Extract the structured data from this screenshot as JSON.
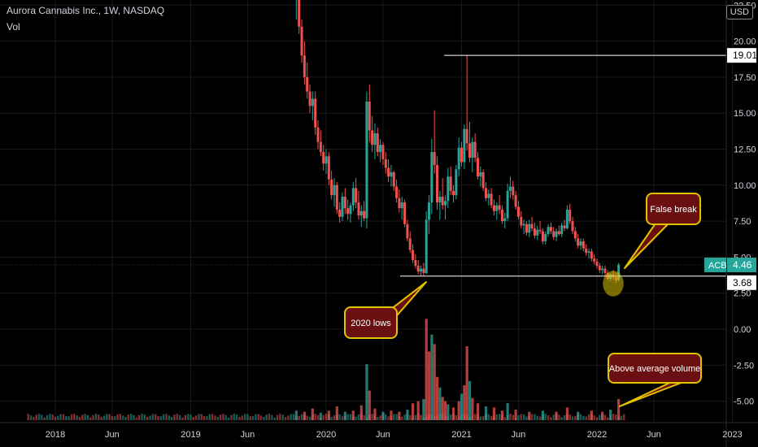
{
  "header": {
    "symbol_title": "Aurora Cannabis Inc., 1W, NASDAQ",
    "volume_label": "Vol",
    "currency": "USD"
  },
  "chart_data": {
    "type": "candlestick",
    "ticker": "ACB",
    "y_ticks": [
      "-5.00",
      "-2.50",
      "0.00",
      "2.50",
      "5.00",
      "7.50",
      "10.00",
      "12.50",
      "15.00",
      "17.50",
      "20.00",
      "22.50"
    ],
    "x_ticks": [
      "2018",
      "Jun",
      "2019",
      "Jun",
      "2020",
      "Jun",
      "2021",
      "Jun",
      "2022",
      "Jun",
      "2023"
    ],
    "price_labels": {
      "last": "4.46",
      "high_line": "19.01",
      "low_line": "3.68"
    },
    "colors": {
      "up": "#26a69a",
      "down": "#ef5350",
      "annotation_fill": "#6b1010",
      "annotation_border": "#e0c200",
      "grid": "#1a1a1a"
    },
    "candles": [
      [
        2019.78,
        23.0,
        25.5,
        21.5,
        24.0
      ],
      [
        2019.8,
        24.0,
        24.5,
        20.5,
        21.0
      ],
      [
        2019.82,
        21.0,
        21.5,
        18.5,
        19.0
      ],
      [
        2019.84,
        19.0,
        20.0,
        17.0,
        17.5
      ],
      [
        2019.86,
        17.5,
        18.5,
        16.0,
        16.5
      ],
      [
        2019.88,
        16.5,
        17.0,
        15.0,
        15.5
      ],
      [
        2019.9,
        15.5,
        16.5,
        14.5,
        16.0
      ],
      [
        2019.92,
        16.0,
        16.5,
        13.5,
        14.0
      ],
      [
        2019.94,
        14.0,
        14.5,
        12.5,
        13.0
      ],
      [
        2019.96,
        13.0,
        13.8,
        12.0,
        12.3
      ],
      [
        2019.98,
        12.3,
        12.8,
        11.0,
        11.5
      ],
      [
        2020.0,
        11.5,
        12.5,
        10.8,
        12.0
      ],
      [
        2020.02,
        12.0,
        12.3,
        10.0,
        10.4
      ],
      [
        2020.04,
        10.4,
        11.0,
        9.0,
        9.3
      ],
      [
        2020.06,
        9.3,
        10.5,
        8.5,
        10.0
      ],
      [
        2020.08,
        10.0,
        10.2,
        8.0,
        8.3
      ],
      [
        2020.1,
        8.3,
        8.8,
        7.4,
        7.8
      ],
      [
        2020.12,
        7.8,
        9.5,
        7.5,
        9.2
      ],
      [
        2020.14,
        9.2,
        9.8,
        8.0,
        8.4
      ],
      [
        2020.16,
        8.4,
        9.0,
        7.6,
        8.0
      ],
      [
        2020.18,
        8.0,
        8.8,
        7.4,
        8.6
      ],
      [
        2020.2,
        8.6,
        10.2,
        8.2,
        9.8
      ],
      [
        2020.22,
        9.8,
        10.5,
        8.4,
        8.8
      ],
      [
        2020.24,
        8.8,
        9.6,
        7.6,
        7.9
      ],
      [
        2020.26,
        7.9,
        8.6,
        7.1,
        8.2
      ],
      [
        2020.28,
        8.2,
        8.9,
        7.5,
        7.7
      ],
      [
        2020.3,
        7.7,
        16.5,
        7.0,
        15.8
      ],
      [
        2020.32,
        15.8,
        17.0,
        13.0,
        13.8
      ],
      [
        2020.34,
        13.8,
        14.8,
        12.3,
        12.8
      ],
      [
        2020.36,
        12.8,
        14.3,
        11.8,
        13.6
      ],
      [
        2020.38,
        13.6,
        14.0,
        12.0,
        12.3
      ],
      [
        2020.4,
        12.3,
        13.2,
        11.6,
        12.8
      ],
      [
        2020.42,
        12.8,
        13.0,
        11.4,
        11.8
      ],
      [
        2020.44,
        11.8,
        12.3,
        10.8,
        11.2
      ],
      [
        2020.46,
        11.2,
        11.8,
        10.2,
        10.6
      ],
      [
        2020.48,
        10.6,
        11.4,
        9.9,
        10.9
      ],
      [
        2020.5,
        10.9,
        11.0,
        9.6,
        9.9
      ],
      [
        2020.52,
        9.9,
        10.4,
        8.8,
        9.1
      ],
      [
        2020.54,
        9.1,
        9.7,
        8.1,
        8.4
      ],
      [
        2020.56,
        8.4,
        9.2,
        7.6,
        8.8
      ],
      [
        2020.58,
        8.8,
        9.0,
        7.1,
        7.3
      ],
      [
        2020.6,
        7.3,
        7.6,
        6.1,
        6.3
      ],
      [
        2020.62,
        6.3,
        6.8,
        5.3,
        5.5
      ],
      [
        2020.64,
        5.5,
        5.9,
        4.6,
        4.8
      ],
      [
        2020.66,
        4.8,
        5.2,
        4.2,
        4.4
      ],
      [
        2020.68,
        4.4,
        4.8,
        3.8,
        4.0
      ],
      [
        2020.7,
        4.0,
        4.4,
        3.7,
        4.2
      ],
      [
        2020.72,
        4.2,
        4.6,
        3.7,
        3.9
      ],
      [
        2020.74,
        3.9,
        8.2,
        3.8,
        7.6
      ],
      [
        2020.76,
        7.6,
        9.3,
        6.6,
        8.8
      ],
      [
        2020.78,
        8.8,
        13.2,
        8.0,
        12.3
      ],
      [
        2020.8,
        12.3,
        15.2,
        10.8,
        11.4
      ],
      [
        2020.82,
        11.4,
        12.0,
        8.3,
        8.8
      ],
      [
        2020.84,
        8.8,
        9.6,
        7.6,
        9.2
      ],
      [
        2020.86,
        9.2,
        10.5,
        8.3,
        8.6
      ],
      [
        2020.88,
        8.6,
        9.3,
        7.6,
        8.9
      ],
      [
        2020.9,
        8.9,
        11.2,
        8.4,
        10.6
      ],
      [
        2020.92,
        10.6,
        11.3,
        9.3,
        9.6
      ],
      [
        2020.94,
        9.6,
        10.0,
        8.8,
        9.3
      ],
      [
        2020.96,
        9.3,
        11.4,
        9.0,
        11.1
      ],
      [
        2020.98,
        11.1,
        13.3,
        10.6,
        12.6
      ],
      [
        2021.0,
        12.6,
        13.0,
        11.3,
        11.6
      ],
      [
        2021.02,
        11.6,
        14.2,
        11.1,
        13.9
      ],
      [
        2021.04,
        13.9,
        19.0,
        12.4,
        12.9
      ],
      [
        2021.06,
        12.9,
        14.4,
        11.6,
        11.9
      ],
      [
        2021.08,
        11.9,
        13.3,
        10.9,
        13.0
      ],
      [
        2021.1,
        13.0,
        13.6,
        11.6,
        11.9
      ],
      [
        2021.12,
        11.9,
        12.3,
        10.4,
        10.6
      ],
      [
        2021.14,
        10.6,
        11.3,
        9.9,
        10.9
      ],
      [
        2021.16,
        10.9,
        11.1,
        9.6,
        9.8
      ],
      [
        2021.18,
        9.8,
        10.2,
        8.9,
        9.1
      ],
      [
        2021.2,
        9.1,
        9.7,
        8.6,
        9.4
      ],
      [
        2021.22,
        9.4,
        9.8,
        8.4,
        8.6
      ],
      [
        2021.24,
        8.6,
        9.0,
        7.9,
        8.2
      ],
      [
        2021.26,
        8.2,
        8.8,
        7.6,
        8.6
      ],
      [
        2021.28,
        8.6,
        9.3,
        8.0,
        8.3
      ],
      [
        2021.3,
        8.3,
        8.6,
        7.3,
        7.5
      ],
      [
        2021.32,
        7.5,
        8.1,
        7.0,
        7.7
      ],
      [
        2021.34,
        7.7,
        10.1,
        7.5,
        9.6
      ],
      [
        2021.36,
        9.6,
        10.6,
        9.1,
        9.9
      ],
      [
        2021.38,
        9.9,
        10.3,
        9.0,
        9.3
      ],
      [
        2021.4,
        9.3,
        9.6,
        8.3,
        8.5
      ],
      [
        2021.42,
        8.5,
        8.9,
        7.6,
        7.8
      ],
      [
        2021.44,
        7.8,
        8.2,
        7.0,
        7.2
      ],
      [
        2021.46,
        7.2,
        7.6,
        6.6,
        7.3
      ],
      [
        2021.48,
        7.3,
        7.5,
        6.5,
        6.7
      ],
      [
        2021.5,
        6.7,
        7.6,
        6.4,
        7.3
      ],
      [
        2021.52,
        7.3,
        7.8,
        6.8,
        7.0
      ],
      [
        2021.54,
        7.0,
        7.4,
        6.3,
        6.5
      ],
      [
        2021.56,
        6.5,
        7.2,
        6.2,
        6.9
      ],
      [
        2021.58,
        6.9,
        7.5,
        6.6,
        6.8
      ],
      [
        2021.6,
        6.8,
        7.0,
        5.9,
        6.1
      ],
      [
        2021.62,
        6.1,
        6.8,
        5.9,
        6.6
      ],
      [
        2021.64,
        6.6,
        7.3,
        6.4,
        7.1
      ],
      [
        2021.66,
        7.1,
        7.4,
        6.6,
        6.8
      ],
      [
        2021.68,
        6.8,
        7.1,
        6.2,
        6.4
      ],
      [
        2021.7,
        6.4,
        7.0,
        6.1,
        6.8
      ],
      [
        2021.72,
        6.8,
        7.2,
        6.5,
        6.6
      ],
      [
        2021.74,
        6.6,
        7.4,
        6.4,
        7.2
      ],
      [
        2021.76,
        7.2,
        7.6,
        6.8,
        7.0
      ],
      [
        2021.78,
        7.0,
        8.6,
        6.9,
        8.3
      ],
      [
        2021.8,
        8.3,
        8.7,
        7.3,
        7.5
      ],
      [
        2021.82,
        7.5,
        7.8,
        6.6,
        6.8
      ],
      [
        2021.84,
        6.8,
        7.1,
        6.1,
        6.3
      ],
      [
        2021.86,
        6.3,
        6.6,
        5.6,
        5.8
      ],
      [
        2021.88,
        5.8,
        6.3,
        5.5,
        6.1
      ],
      [
        2021.9,
        6.1,
        6.3,
        5.4,
        5.6
      ],
      [
        2021.92,
        5.6,
        5.9,
        5.1,
        5.3
      ],
      [
        2021.94,
        5.3,
        5.6,
        4.9,
        5.4
      ],
      [
        2021.96,
        5.4,
        5.6,
        4.7,
        4.9
      ],
      [
        2021.98,
        4.9,
        5.2,
        4.5,
        4.7
      ],
      [
        2022.0,
        4.7,
        4.9,
        4.2,
        4.4
      ],
      [
        2022.02,
        4.4,
        4.6,
        3.9,
        4.1
      ],
      [
        2022.04,
        4.1,
        4.4,
        3.8,
        4.2
      ],
      [
        2022.06,
        4.2,
        4.4,
        3.7,
        3.9
      ],
      [
        2022.08,
        3.9,
        4.1,
        3.4,
        3.5
      ],
      [
        2022.1,
        3.5,
        3.9,
        3.3,
        3.8
      ],
      [
        2022.12,
        3.8,
        4.1,
        3.4,
        3.6
      ],
      [
        2022.14,
        3.6,
        3.9,
        3.2,
        3.4
      ],
      [
        2022.16,
        3.4,
        4.6,
        3.3,
        4.46
      ]
    ],
    "volume_approx": [
      [
        2019.78,
        0.9
      ],
      [
        2019.84,
        0.8
      ],
      [
        2019.9,
        1.1
      ],
      [
        2019.96,
        0.7
      ],
      [
        2020.02,
        0.9
      ],
      [
        2020.08,
        1.3
      ],
      [
        2020.14,
        0.8
      ],
      [
        2020.2,
        0.9
      ],
      [
        2020.26,
        1.4
      ],
      [
        2020.3,
        5.3
      ],
      [
        2020.32,
        2.8
      ],
      [
        2020.36,
        1.1
      ],
      [
        2020.42,
        0.8
      ],
      [
        2020.48,
        0.9
      ],
      [
        2020.54,
        0.8
      ],
      [
        2020.6,
        1.0
      ],
      [
        2020.64,
        1.6
      ],
      [
        2020.68,
        1.8
      ],
      [
        2020.72,
        2.0
      ],
      [
        2020.74,
        9.6
      ],
      [
        2020.76,
        6.5
      ],
      [
        2020.78,
        8.1
      ],
      [
        2020.8,
        7.2
      ],
      [
        2020.82,
        4.1
      ],
      [
        2020.84,
        3.1
      ],
      [
        2020.86,
        2.2
      ],
      [
        2020.88,
        1.8
      ],
      [
        2020.9,
        1.5
      ],
      [
        2020.94,
        1.2
      ],
      [
        2020.98,
        1.8
      ],
      [
        2021.0,
        2.5
      ],
      [
        2021.02,
        3.3
      ],
      [
        2021.04,
        7.0
      ],
      [
        2021.06,
        3.7
      ],
      [
        2021.08,
        2.1
      ],
      [
        2021.12,
        1.6
      ],
      [
        2021.18,
        1.3
      ],
      [
        2021.24,
        1.2
      ],
      [
        2021.3,
        0.9
      ],
      [
        2021.34,
        1.6
      ],
      [
        2021.4,
        1.0
      ],
      [
        2021.5,
        0.8
      ],
      [
        2021.6,
        0.9
      ],
      [
        2021.7,
        0.8
      ],
      [
        2021.78,
        1.2
      ],
      [
        2021.86,
        0.8
      ],
      [
        2021.96,
        0.9
      ],
      [
        2022.04,
        0.8
      ],
      [
        2022.1,
        1.0
      ],
      [
        2022.16,
        2.0
      ]
    ],
    "annotations": [
      {
        "text": "False break"
      },
      {
        "text": "2020 lows"
      },
      {
        "text": "Above average volume"
      }
    ]
  }
}
